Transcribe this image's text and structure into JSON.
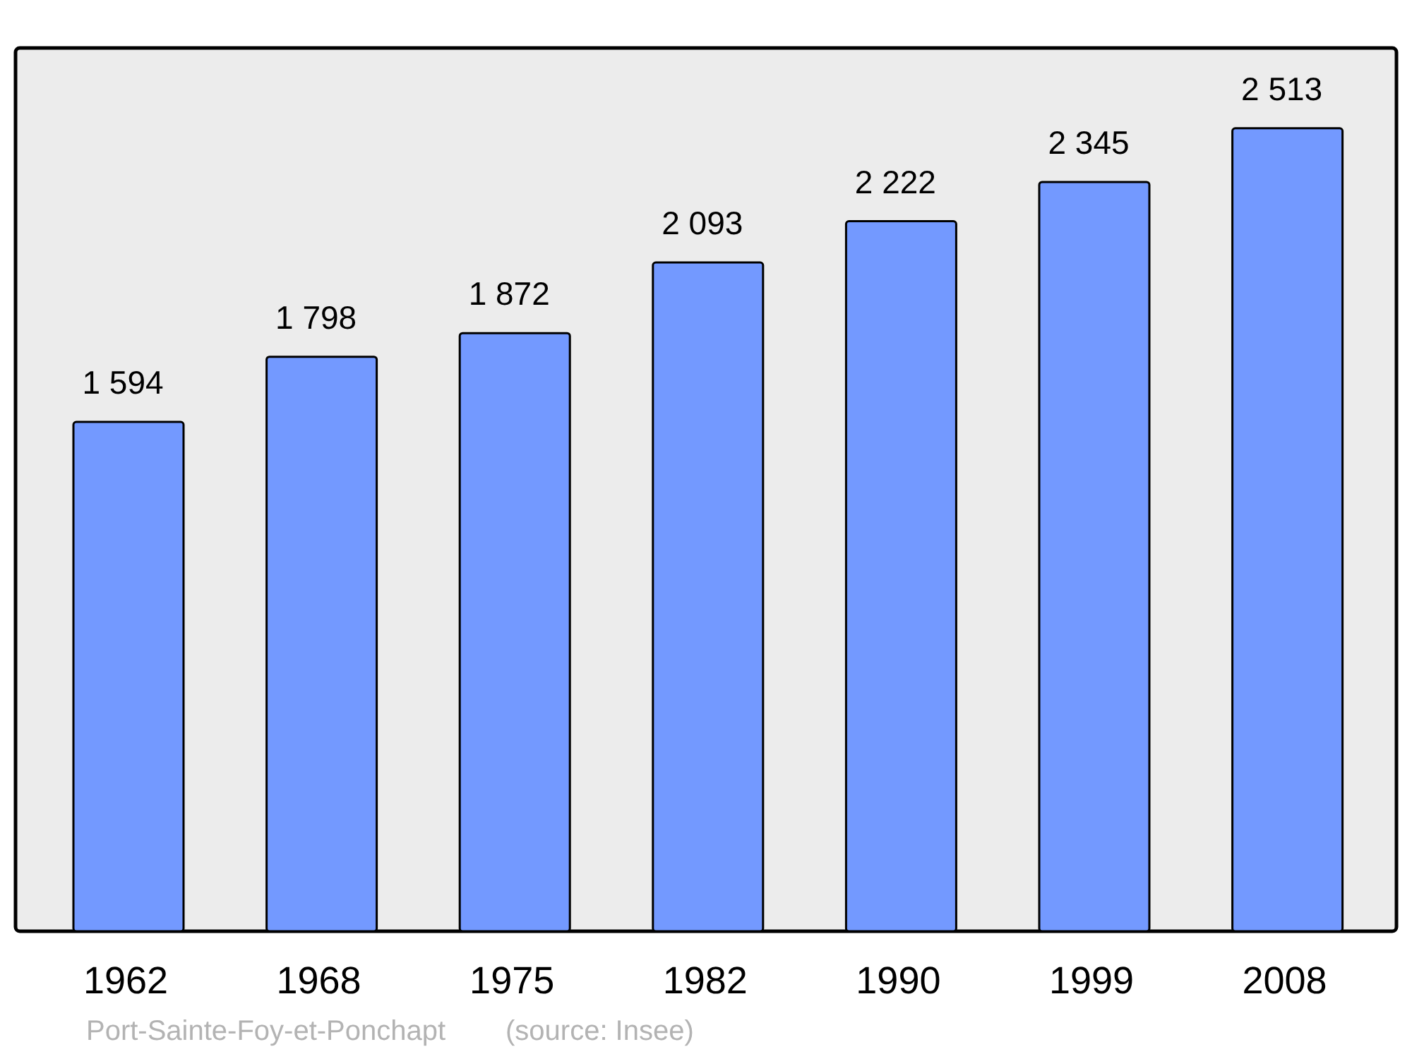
{
  "chart_data": {
    "type": "bar",
    "categories": [
      "1962",
      "1968",
      "1975",
      "1982",
      "1990",
      "1999",
      "2008"
    ],
    "values": [
      1594,
      1798,
      1872,
      2093,
      2222,
      2345,
      2513
    ],
    "value_labels": [
      "1 594",
      "1 798",
      "1 872",
      "2 093",
      "2 222",
      "2 345",
      "2 513"
    ],
    "color": "#7399ff",
    "annotations": [
      "Port-Sainte-Foy-et-Ponchapt",
      "(source: Insee)"
    ]
  }
}
